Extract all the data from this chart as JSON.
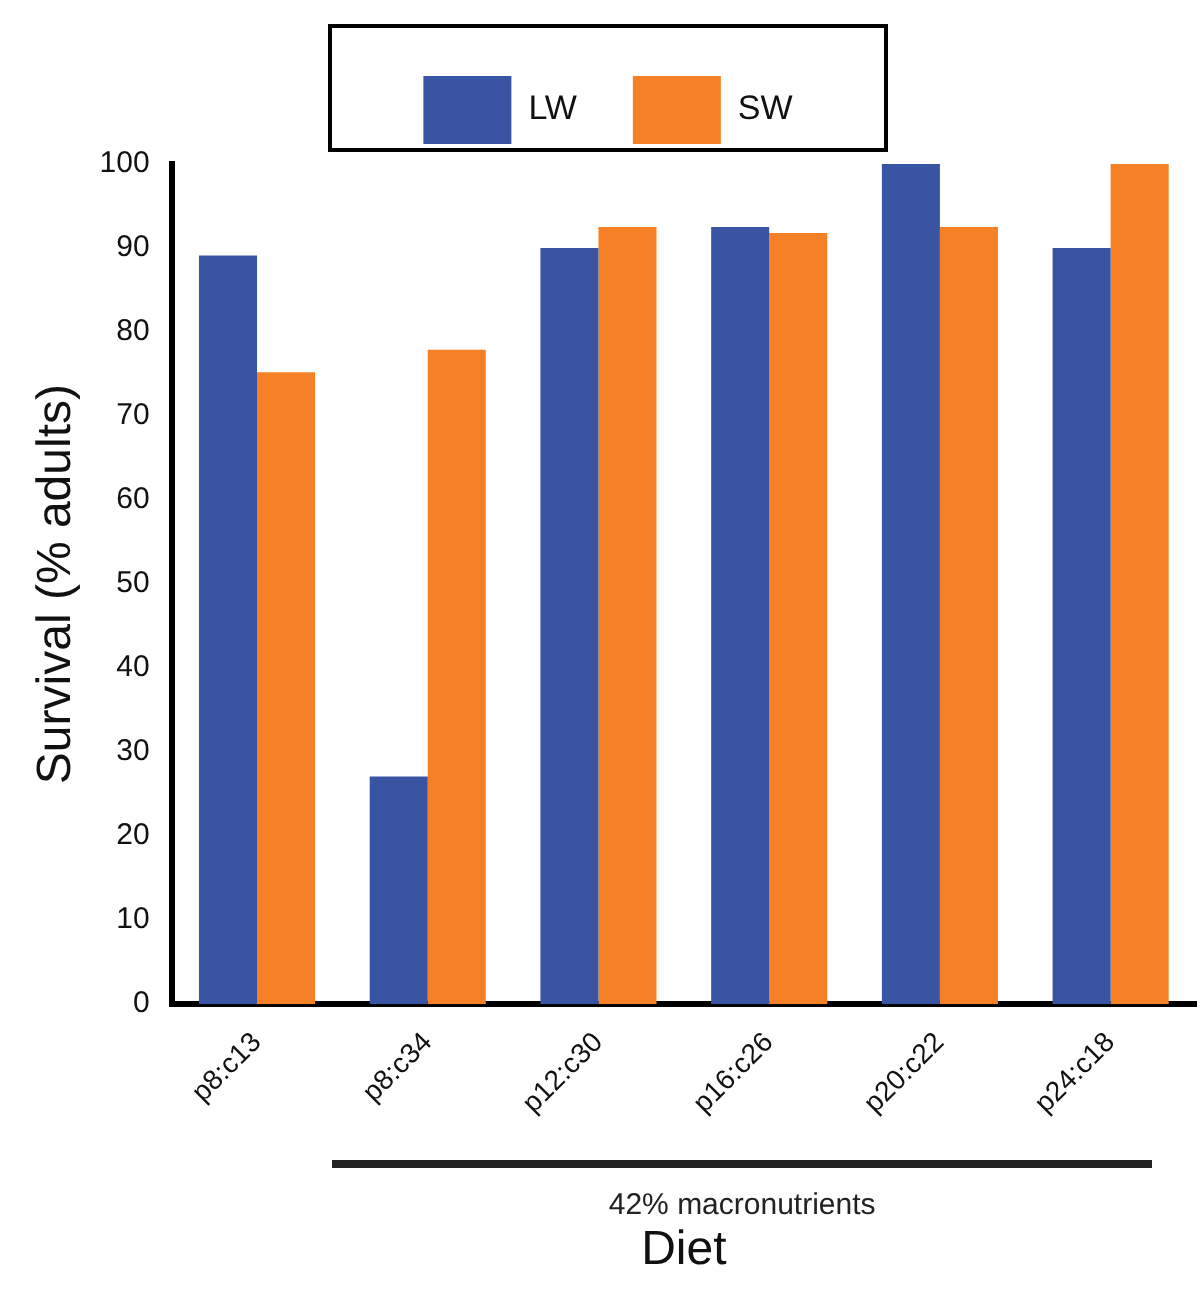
{
  "chart_data": {
    "type": "bar",
    "xlabel": "Diet",
    "ylabel": "Survival (% adults)",
    "categories": [
      "p8:c13",
      "p8:c34",
      "p12:c30",
      "p16:c26",
      "p20:c22",
      "p24:c18"
    ],
    "series": [
      {
        "name": "LW",
        "color": "#3a54a4",
        "values": [
          89.1,
          27.1,
          90,
          92.5,
          100,
          90
        ]
      },
      {
        "name": "SW",
        "color": "#f58025",
        "values": [
          75.2,
          77.9,
          92.5,
          91.8,
          92.5,
          100
        ]
      }
    ],
    "ylim": [
      0,
      100
    ],
    "yticks": [
      0,
      10,
      20,
      30,
      40,
      50,
      60,
      70,
      80,
      90,
      100
    ],
    "grid": false,
    "legend": "top",
    "annotations": [
      "42% macronutrients"
    ]
  }
}
